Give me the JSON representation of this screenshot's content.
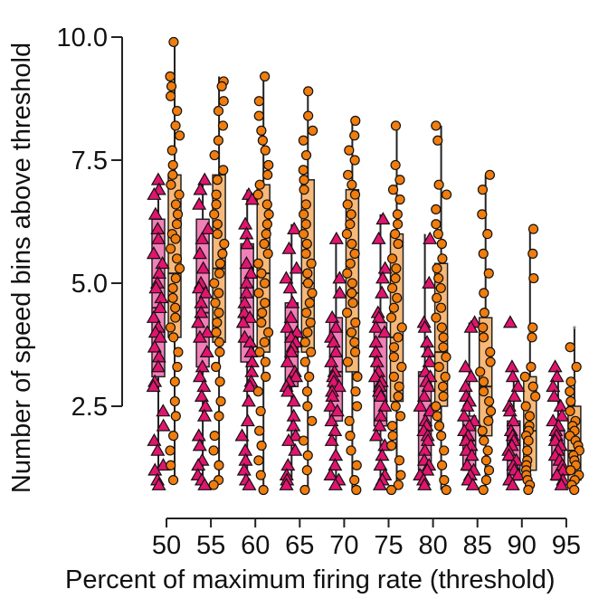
{
  "chart_data": {
    "type": "box",
    "title": "",
    "xlabel": "Percent of maximum firing rate (threshold)",
    "ylabel": "Number of speed bins above threshold",
    "ylim": [
      0.8,
      10.0
    ],
    "yticks": [
      2.5,
      5.0,
      7.5,
      10.0
    ],
    "ytick_labels": [
      "2.5",
      "5.0",
      "7.5",
      "10.0"
    ],
    "categories": [
      "50",
      "55",
      "60",
      "65",
      "70",
      "75",
      "80",
      "85",
      "90",
      "95"
    ],
    "grid": false,
    "legend": "none",
    "series": [
      {
        "marker": "triangle",
        "box_color": "#f080b8",
        "marker_color": "#e0156e",
        "boxes": [
          {
            "whislo": 1.0,
            "q1": 3.1,
            "med": 4.5,
            "q3": 6.3,
            "whishi": 7.2
          },
          {
            "whislo": 1.0,
            "q1": 3.3,
            "med": 4.4,
            "q3": 6.3,
            "whishi": 7.1
          },
          {
            "whislo": 1.0,
            "q1": 3.4,
            "med": 4.3,
            "q3": 5.8,
            "whishi": 6.9
          },
          {
            "whislo": 1.0,
            "q1": 2.9,
            "med": 3.9,
            "q3": 4.6,
            "whishi": 6.2
          },
          {
            "whislo": 1.0,
            "q1": 2.2,
            "med": 3.2,
            "q3": 4.3,
            "whishi": 6.0
          },
          {
            "whislo": 1.0,
            "q1": 2.1,
            "med": 2.9,
            "q3": 4.2,
            "whishi": 6.4
          },
          {
            "whislo": 1.0,
            "q1": 1.2,
            "med": 2.0,
            "q3": 3.2,
            "whishi": 6.0
          },
          {
            "whislo": 1.0,
            "q1": 1.2,
            "med": 1.8,
            "q3": 2.3,
            "whishi": 4.2
          },
          {
            "whislo": 1.0,
            "q1": 1.0,
            "med": 1.4,
            "q3": 2.2,
            "whishi": 3.2
          },
          {
            "whislo": 1.0,
            "q1": 1.0,
            "med": 1.1,
            "q3": 2.0,
            "whishi": 3.3
          }
        ],
        "points": [
          [
            7.1,
            6.9,
            6.8,
            6.4,
            6.1,
            5.9,
            5.6,
            5.4,
            5.2,
            5.0,
            4.9,
            4.7,
            4.5,
            4.3,
            4.1,
            4.0,
            3.9,
            3.7,
            3.5,
            3.3,
            3.0,
            2.9,
            2.4,
            2.1,
            1.8,
            1.6,
            1.3,
            1.2,
            1.0,
            0.9
          ],
          [
            7.1,
            6.9,
            6.6,
            6.1,
            5.9,
            5.6,
            5.3,
            5.0,
            4.9,
            4.8,
            4.6,
            4.4,
            4.2,
            4.0,
            3.9,
            3.6,
            3.3,
            3.1,
            2.9,
            2.7,
            2.5,
            2.3,
            1.9,
            1.7,
            1.4,
            1.3,
            1.1,
            1.0,
            0.9
          ],
          [
            6.8,
            6.7,
            6.2,
            6.0,
            5.8,
            5.4,
            5.2,
            5.0,
            4.8,
            4.6,
            4.4,
            4.3,
            4.2,
            3.9,
            3.8,
            3.6,
            3.4,
            3.2,
            3.0,
            2.9,
            2.6,
            2.2,
            1.9,
            1.6,
            1.4,
            1.2,
            1.0,
            0.9
          ],
          [
            6.1,
            5.7,
            5.3,
            5.1,
            4.9,
            4.6,
            4.3,
            4.1,
            4.0,
            3.9,
            3.8,
            3.7,
            3.6,
            3.4,
            3.2,
            3.1,
            3.0,
            2.9,
            2.8,
            2.6,
            2.3,
            2.1,
            1.9,
            1.8,
            1.6,
            1.3,
            1.1,
            1.0,
            0.9
          ],
          [
            5.9,
            5.1,
            4.8,
            4.3,
            4.1,
            3.9,
            3.8,
            3.6,
            3.4,
            3.2,
            3.1,
            3.0,
            2.9,
            2.8,
            2.7,
            2.5,
            2.4,
            2.2,
            2.0,
            1.8,
            1.5,
            1.3,
            1.1,
            1.0,
            0.9
          ],
          [
            6.3,
            5.9,
            5.3,
            5.1,
            4.8,
            4.4,
            4.3,
            4.1,
            4.0,
            3.8,
            3.6,
            3.4,
            3.2,
            3.1,
            3.0,
            2.9,
            2.8,
            2.7,
            2.5,
            2.3,
            2.1,
            1.9,
            1.7,
            1.5,
            1.3,
            1.1,
            1.0,
            0.9
          ],
          [
            5.9,
            5.0,
            4.2,
            4.1,
            3.8,
            3.6,
            3.4,
            3.2,
            3.1,
            3.0,
            2.9,
            2.7,
            2.5,
            2.4,
            2.2,
            2.1,
            2.0,
            1.9,
            1.8,
            1.6,
            1.4,
            1.3,
            1.2,
            1.1,
            1.0,
            0.9
          ],
          [
            4.2,
            4.1,
            3.3,
            3.1,
            2.9,
            2.7,
            2.6,
            2.5,
            2.3,
            2.2,
            2.1,
            2.0,
            1.9,
            1.8,
            1.7,
            1.6,
            1.5,
            1.3,
            1.2,
            1.1,
            1.0,
            0.9
          ],
          [
            4.2,
            3.3,
            3.1,
            2.9,
            2.7,
            2.5,
            2.4,
            2.2,
            2.0,
            1.9,
            1.8,
            1.7,
            1.6,
            1.5,
            1.4,
            1.3,
            1.2,
            1.1,
            1.0,
            0.9
          ],
          [
            3.3,
            3.1,
            2.9,
            2.7,
            2.5,
            2.3,
            2.2,
            2.1,
            2.0,
            1.9,
            1.8,
            1.7,
            1.6,
            1.5,
            1.4,
            1.3,
            1.2,
            1.1,
            1.0,
            0.9
          ]
        ]
      },
      {
        "marker": "circle",
        "box_color": "#f6b97a",
        "marker_color": "#f07d0e",
        "boxes": [
          {
            "whislo": 1.0,
            "q1": 3.9,
            "med": 5.2,
            "q3": 7.2,
            "whishi": 10.0
          },
          {
            "whislo": 1.0,
            "q1": 3.8,
            "med": 5.3,
            "q3": 7.2,
            "whishi": 9.2
          },
          {
            "whislo": 0.8,
            "q1": 3.6,
            "med": 5.2,
            "q3": 7.0,
            "whishi": 9.2
          },
          {
            "whislo": 0.8,
            "q1": 3.6,
            "med": 5.0,
            "q3": 7.1,
            "whishi": 8.9
          },
          {
            "whislo": 0.8,
            "q1": 3.2,
            "med": 4.8,
            "q3": 6.9,
            "whishi": 8.3
          },
          {
            "whislo": 0.8,
            "q1": 2.6,
            "med": 3.9,
            "q3": 6.0,
            "whishi": 8.2
          },
          {
            "whislo": 0.8,
            "q1": 2.5,
            "med": 3.6,
            "q3": 5.4,
            "whishi": 8.2
          },
          {
            "whislo": 0.8,
            "q1": 1.9,
            "med": 2.9,
            "q3": 4.3,
            "whishi": 7.2
          },
          {
            "whislo": 0.8,
            "q1": 1.2,
            "med": 2.0,
            "q3": 3.1,
            "whishi": 6.1
          },
          {
            "whislo": 0.8,
            "q1": 1.0,
            "med": 1.6,
            "q3": 2.5,
            "whishi": 4.1
          }
        ],
        "points": [
          [
            9.9,
            9.2,
            9.0,
            8.8,
            8.5,
            8.2,
            8.0,
            7.7,
            7.4,
            7.2,
            7.0,
            6.8,
            6.6,
            6.4,
            6.2,
            6.0,
            5.9,
            5.7,
            5.5,
            5.3,
            5.1,
            4.9,
            4.7,
            4.5,
            4.3,
            4.1,
            3.9,
            3.6,
            3.3,
            3.0,
            2.6,
            2.3,
            1.9,
            1.6,
            1.3,
            1.0
          ],
          [
            9.1,
            9.0,
            8.7,
            8.5,
            8.2,
            7.9,
            7.6,
            7.3,
            7.1,
            6.8,
            6.6,
            6.4,
            6.2,
            6.0,
            5.8,
            5.6,
            5.4,
            5.2,
            5.0,
            4.8,
            4.6,
            4.4,
            4.2,
            4.0,
            3.8,
            3.6,
            3.3,
            3.0,
            2.6,
            2.3,
            1.9,
            1.6,
            1.3,
            1.0,
            0.9
          ],
          [
            9.2,
            8.7,
            8.4,
            8.1,
            7.9,
            7.7,
            7.4,
            7.2,
            7.0,
            6.8,
            6.6,
            6.4,
            6.2,
            6.0,
            5.8,
            5.6,
            5.4,
            5.2,
            5.0,
            4.8,
            4.6,
            4.4,
            4.2,
            4.0,
            3.8,
            3.6,
            3.4,
            3.1,
            2.8,
            2.4,
            2.0,
            1.7,
            1.4,
            1.1,
            0.8
          ],
          [
            8.9,
            8.4,
            8.1,
            7.9,
            7.6,
            7.3,
            7.1,
            6.9,
            6.6,
            6.4,
            6.2,
            6.0,
            5.8,
            5.6,
            5.4,
            5.2,
            5.0,
            4.8,
            4.6,
            4.4,
            4.2,
            4.0,
            3.8,
            3.6,
            3.4,
            3.1,
            2.8,
            2.5,
            2.2,
            1.8,
            1.5,
            1.2,
            0.8
          ],
          [
            8.3,
            8.0,
            7.7,
            7.5,
            7.2,
            7.0,
            6.8,
            6.6,
            6.4,
            6.2,
            6.0,
            5.8,
            5.6,
            5.4,
            5.2,
            5.0,
            4.8,
            4.6,
            4.4,
            4.2,
            4.0,
            3.8,
            3.6,
            3.4,
            3.1,
            2.8,
            2.5,
            2.2,
            1.9,
            1.6,
            1.3,
            1.0,
            0.8
          ],
          [
            8.2,
            7.4,
            7.1,
            6.9,
            6.7,
            6.4,
            6.2,
            6.0,
            5.8,
            5.5,
            5.3,
            5.1,
            4.9,
            4.7,
            4.5,
            4.3,
            4.1,
            3.9,
            3.7,
            3.5,
            3.3,
            3.1,
            2.9,
            2.7,
            2.5,
            2.3,
            2.1,
            1.9,
            1.7,
            1.4,
            1.1,
            0.9,
            0.8
          ],
          [
            8.2,
            7.9,
            7.0,
            6.8,
            6.5,
            6.2,
            6.0,
            5.8,
            5.5,
            5.3,
            5.1,
            4.9,
            4.7,
            4.5,
            4.3,
            4.1,
            3.9,
            3.7,
            3.5,
            3.3,
            3.1,
            2.9,
            2.7,
            2.5,
            2.3,
            2.1,
            1.9,
            1.6,
            1.3,
            1.0,
            0.8
          ],
          [
            7.2,
            6.9,
            6.4,
            6.0,
            5.6,
            5.2,
            4.8,
            4.4,
            4.1,
            3.9,
            3.6,
            3.4,
            3.2,
            3.0,
            2.8,
            2.6,
            2.4,
            2.2,
            2.0,
            1.8,
            1.6,
            1.4,
            1.2,
            1.0,
            0.8
          ],
          [
            6.1,
            5.6,
            5.1,
            4.1,
            3.9,
            3.3,
            3.1,
            2.9,
            2.7,
            2.5,
            2.3,
            2.1,
            2.0,
            1.9,
            1.8,
            1.6,
            1.4,
            1.3,
            1.2,
            1.1,
            1.0,
            0.9,
            0.8
          ],
          [
            3.7,
            3.3,
            3.0,
            2.8,
            2.6,
            2.4,
            2.2,
            2.1,
            2.0,
            1.9,
            1.8,
            1.7,
            1.6,
            1.5,
            1.4,
            1.3,
            1.2,
            1.1,
            1.0,
            0.9,
            0.8
          ]
        ]
      }
    ],
    "outliers": [
      {
        "category": "90",
        "series": 1,
        "y": 4.0
      },
      {
        "category": "95",
        "series": 1,
        "y": 4.1
      }
    ]
  }
}
